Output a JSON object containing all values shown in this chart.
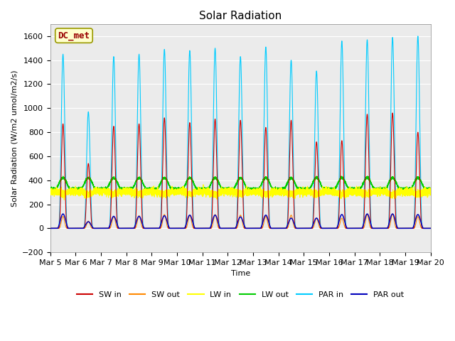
{
  "title": "Solar Radiation",
  "ylabel": "Solar Radiation (W/m2 umol/m2/s)",
  "xlabel": "Time",
  "ylim": [
    -200,
    1700
  ],
  "yticks": [
    -200,
    0,
    200,
    400,
    600,
    800,
    1000,
    1200,
    1400,
    1600
  ],
  "xtick_labels": [
    "Mar 5",
    "Mar 6",
    "Mar 7",
    "Mar 8",
    "Mar 9",
    "Mar 10",
    "Mar 11",
    "Mar 12",
    "Mar 13",
    "Mar 14",
    "Mar 15",
    "Mar 16",
    "Mar 17",
    "Mar 18",
    "Mar 19",
    "Mar 20"
  ],
  "legend_labels": [
    "SW in",
    "SW out",
    "LW in",
    "LW out",
    "PAR in",
    "PAR out"
  ],
  "line_colors": [
    "#cc0000",
    "#ff8800",
    "#ffff00",
    "#00cc00",
    "#00ccff",
    "#0000bb"
  ],
  "annotation_text": "DC_met",
  "annotation_color": "#990000",
  "annotation_bg": "#ffffcc",
  "annotation_border": "#999900",
  "plot_bg_color": "#ebebeb",
  "n_days": 15,
  "peak_SW_in": [
    870,
    540,
    850,
    870,
    920,
    880,
    910,
    900,
    840,
    900,
    720,
    730,
    950,
    960,
    800
  ],
  "peak_SW_out": [
    100,
    60,
    100,
    105,
    115,
    110,
    115,
    110,
    100,
    110,
    85,
    85,
    115,
    120,
    98
  ],
  "peak_PAR_in": [
    1450,
    970,
    1430,
    1450,
    1490,
    1480,
    1500,
    1430,
    1510,
    1400,
    1310,
    1560,
    1570,
    1590,
    1600
  ],
  "peak_PAR_out": [
    120,
    55,
    100,
    100,
    105,
    110,
    110,
    95,
    110,
    85,
    85,
    115,
    120,
    120,
    115
  ],
  "lw_in_base": 305,
  "lw_out_base": 345,
  "lw_in_noise": 15,
  "lw_out_day_peak": 420,
  "lw_out_night_base": 330,
  "title_fontsize": 11,
  "label_fontsize": 8,
  "tick_fontsize": 8,
  "legend_fontsize": 8
}
